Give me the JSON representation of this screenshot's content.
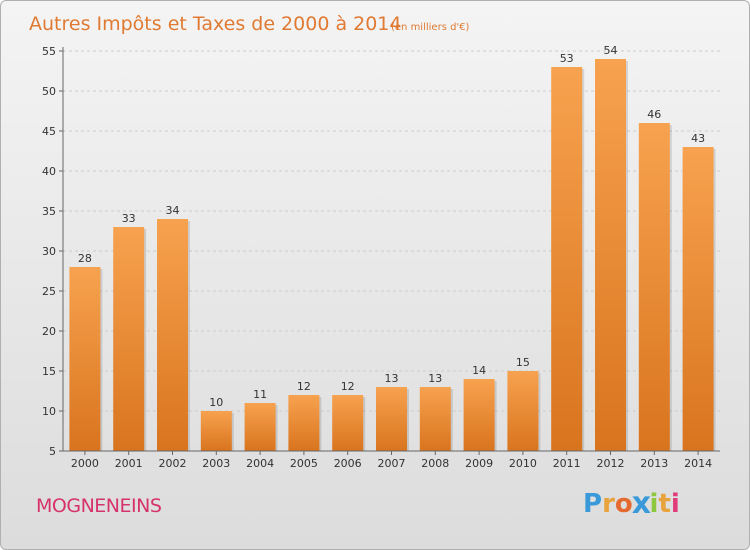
{
  "chart_data": {
    "type": "bar",
    "title": "Autres Impôts et Taxes de 2000 à 2014",
    "subtitle": "(en milliers d'€)",
    "categories": [
      "2000",
      "2001",
      "2002",
      "2003",
      "2004",
      "2005",
      "2006",
      "2007",
      "2008",
      "2009",
      "2010",
      "2011",
      "2012",
      "2013",
      "2014"
    ],
    "values": [
      28,
      33,
      34,
      10,
      11,
      12,
      12,
      13,
      13,
      14,
      15,
      53,
      54,
      46,
      43
    ],
    "yticks": [
      5,
      10,
      15,
      20,
      25,
      30,
      35,
      40,
      45,
      50,
      55
    ],
    "ylim": [
      5,
      55
    ],
    "grid": true,
    "colors": {
      "bar_light": "#f7a24f",
      "bar_dark": "#d9741e",
      "grid": "#cccccc"
    }
  },
  "footer": {
    "commune": "MOGNENEINS",
    "logo_letters": [
      "P",
      "r",
      "o",
      "x",
      "i",
      "t",
      "i"
    ],
    "logo_colors": [
      "#3a9ad9",
      "#e8a33c",
      "#e56a2f",
      "#3a9ad9",
      "#8dc63f",
      "#e8a33c",
      "#e03c7a"
    ]
  }
}
